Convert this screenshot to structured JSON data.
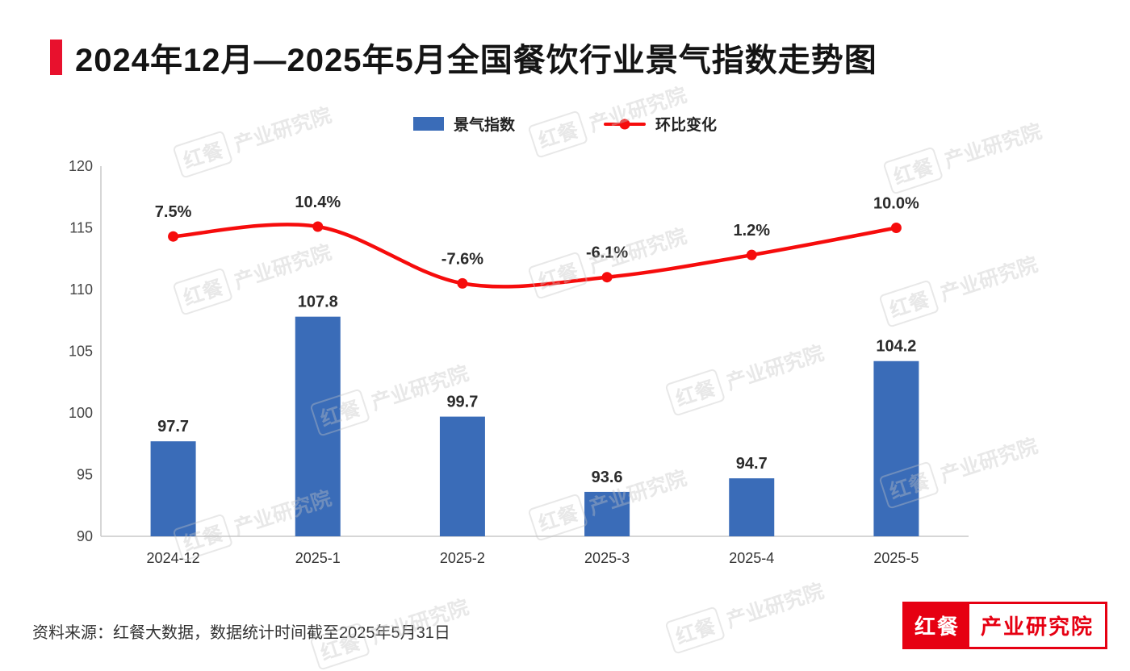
{
  "title": {
    "text": "2024年12月—2025年5月全国餐饮行业景气指数走势图"
  },
  "legend": {
    "bar_label": "景气指数",
    "line_label": "环比变化"
  },
  "colors": {
    "bar": "#3A6CB8",
    "line": "#F60C0C",
    "accent": "#E8112D",
    "logo_red": "#E60012",
    "axis": "#c8c8c8",
    "tick_label": "#444444",
    "value_label": "#2b2b2b"
  },
  "chart_data": {
    "type": "bar",
    "categories": [
      "2024-12",
      "2025-1",
      "2025-2",
      "2025-3",
      "2025-4",
      "2025-5"
    ],
    "series": [
      {
        "name": "景气指数",
        "type": "bar",
        "values": [
          97.7,
          107.8,
          99.7,
          93.6,
          94.7,
          104.2
        ]
      },
      {
        "name": "环比变化",
        "type": "line",
        "labels": [
          "7.5%",
          "10.4%",
          "-7.6%",
          "-6.1%",
          "1.2%",
          "10.0%"
        ],
        "axis_values": [
          114.3,
          115.1,
          110.5,
          111.0,
          112.8,
          115.0
        ]
      }
    ],
    "title": "2024年12月—2025年5月全国餐饮行业景气指数走势图",
    "xlabel": "",
    "ylabel": "",
    "ylim": [
      90,
      120
    ],
    "yticks": [
      90,
      95,
      100,
      105,
      110,
      115,
      120
    ],
    "legend_position": "top"
  },
  "source": {
    "text": "资料来源：红餐大数据，数据统计时间截至2025年5月31日"
  },
  "logo": {
    "primary": "红餐",
    "secondary": "产业研究院"
  },
  "watermark": {
    "primary": "红餐",
    "secondary": "产业研究院"
  }
}
